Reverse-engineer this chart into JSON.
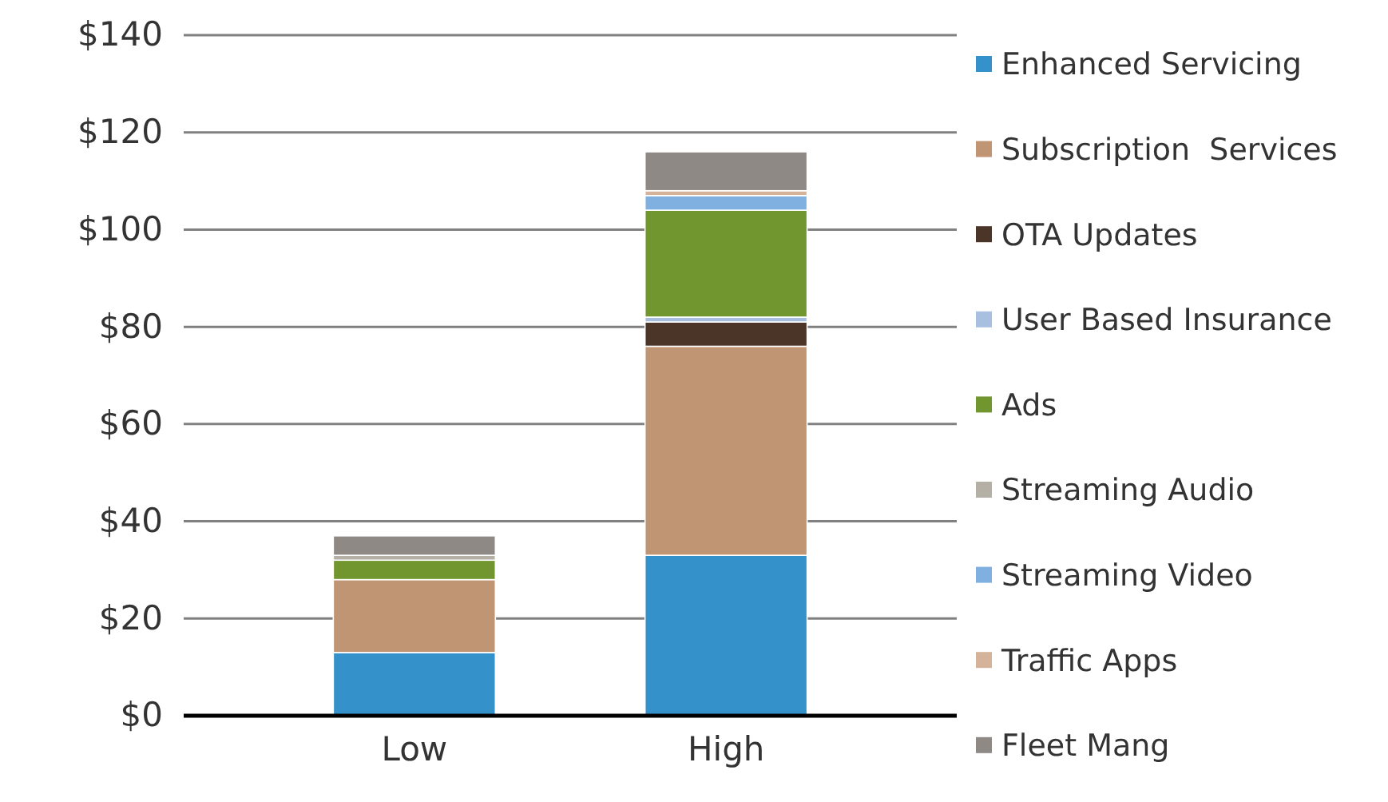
{
  "chart_data": {
    "type": "bar",
    "stacked": true,
    "categories": [
      "Low",
      "High"
    ],
    "series": [
      {
        "name": "Enhanced Servicing",
        "color": "#3591c9",
        "values": [
          13,
          33
        ]
      },
      {
        "name": "Subscription  Services",
        "color": "#c09574",
        "values": [
          15,
          43
        ]
      },
      {
        "name": "OTA Updates",
        "color": "#4a3528",
        "values": [
          0,
          5
        ]
      },
      {
        "name": "User Based Insurance",
        "color": "#a9bfe0",
        "values": [
          0,
          1
        ]
      },
      {
        "name": "Ads",
        "color": "#72962f",
        "values": [
          4,
          22
        ]
      },
      {
        "name": "Streaming Audio",
        "color": "#b5b0a5",
        "values": [
          1,
          0
        ]
      },
      {
        "name": "Streaming Video",
        "color": "#7fb0e0",
        "values": [
          0,
          3
        ]
      },
      {
        "name": "Traffic Apps",
        "color": "#d4b39a",
        "values": [
          0,
          1
        ]
      },
      {
        "name": "Fleet Mang",
        "color": "#8f8985",
        "values": [
          4,
          8
        ]
      }
    ],
    "ylim": [
      0,
      140
    ],
    "yticks": [
      {
        "value": 0,
        "label": "$0"
      },
      {
        "value": 20,
        "label": "$20"
      },
      {
        "value": 40,
        "label": "$40"
      },
      {
        "value": 60,
        "label": "$60"
      },
      {
        "value": 80,
        "label": "$80"
      },
      {
        "value": 100,
        "label": "$100"
      },
      {
        "value": 120,
        "label": "$120"
      },
      {
        "value": 140,
        "label": "$140"
      }
    ],
    "grid": "y",
    "legend": "right"
  }
}
